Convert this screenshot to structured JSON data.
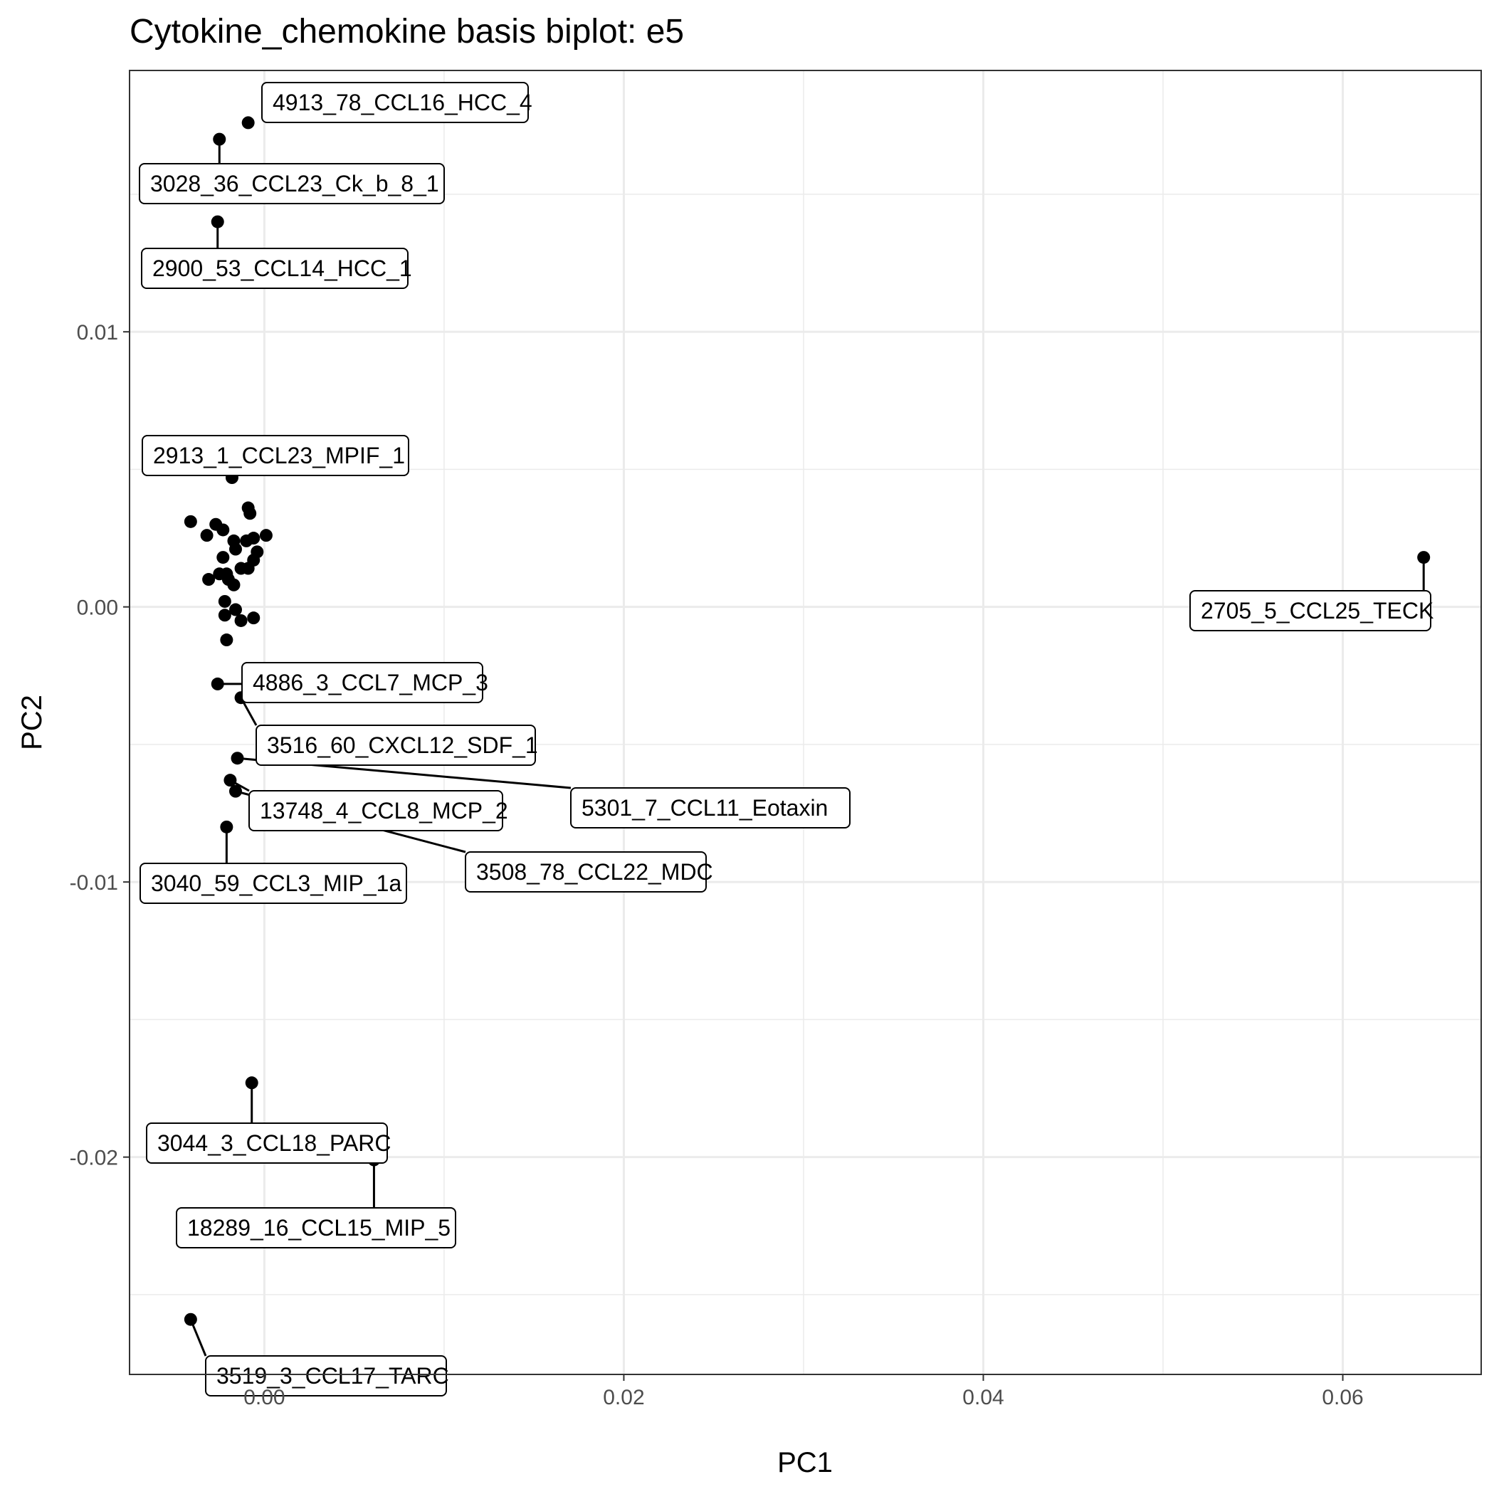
{
  "chart_data": {
    "type": "scatter",
    "title": "Cytokine_chemokine basis biplot: e5",
    "xlabel": "PC1",
    "ylabel": "PC2",
    "xlim": [
      -0.0075,
      0.0677
    ],
    "ylim": [
      -0.0279,
      0.0195
    ],
    "x_ticks": [
      0.0,
      0.02,
      0.04,
      0.06
    ],
    "x_tick_labels": [
      "0.00",
      "0.02",
      "0.04",
      "0.06"
    ],
    "y_ticks": [
      -0.02,
      -0.01,
      0.0,
      0.01
    ],
    "y_tick_labels": [
      "-0.02",
      "-0.01",
      "0.00",
      "0.01"
    ],
    "grid": true,
    "legend": "none",
    "colors": {
      "points": "#000000",
      "grid": "#ebebeb",
      "panel_border": "#333333",
      "label_border": "#000000"
    },
    "points": [
      {
        "x": -0.0009,
        "y": 0.0176
      },
      {
        "x": -0.0025,
        "y": 0.017
      },
      {
        "x": -0.0026,
        "y": 0.014
      },
      {
        "x": -0.0018,
        "y": 0.0047
      },
      {
        "x": -0.0041,
        "y": 0.0031
      },
      {
        "x": -0.0027,
        "y": 0.003
      },
      {
        "x": -0.0032,
        "y": 0.0026
      },
      {
        "x": -0.0023,
        "y": 0.0028
      },
      {
        "x": -0.0009,
        "y": 0.0036
      },
      {
        "x": -0.0008,
        "y": 0.0034
      },
      {
        "x": -0.0017,
        "y": 0.0024
      },
      {
        "x": -0.001,
        "y": 0.0024
      },
      {
        "x": -0.0006,
        "y": 0.0025
      },
      {
        "x": 0.0001,
        "y": 0.0026
      },
      {
        "x": -0.0016,
        "y": 0.0021
      },
      {
        "x": -0.0004,
        "y": 0.002
      },
      {
        "x": -0.0006,
        "y": 0.0017
      },
      {
        "x": -0.0023,
        "y": 0.0018
      },
      {
        "x": -0.0013,
        "y": 0.0014
      },
      {
        "x": -0.0009,
        "y": 0.0014
      },
      {
        "x": -0.0025,
        "y": 0.0012
      },
      {
        "x": -0.0021,
        "y": 0.0012
      },
      {
        "x": -0.0031,
        "y": 0.001
      },
      {
        "x": -0.002,
        "y": 0.001
      },
      {
        "x": -0.0017,
        "y": 0.0008
      },
      {
        "x": -0.0022,
        "y": 0.0002
      },
      {
        "x": -0.0016,
        "y": -0.0001
      },
      {
        "x": -0.0022,
        "y": -0.0003
      },
      {
        "x": -0.0013,
        "y": -0.0005
      },
      {
        "x": -0.0006,
        "y": -0.0004
      },
      {
        "x": -0.0021,
        "y": -0.0012
      },
      {
        "x": -0.0026,
        "y": -0.0028
      },
      {
        "x": -0.0013,
        "y": -0.0033
      },
      {
        "x": -0.0015,
        "y": -0.0055
      },
      {
        "x": -0.0019,
        "y": -0.0063
      },
      {
        "x": -0.0016,
        "y": -0.0067
      },
      {
        "x": -0.0021,
        "y": -0.008
      },
      {
        "x": -0.0007,
        "y": -0.0173
      },
      {
        "x": 0.0061,
        "y": -0.0201
      },
      {
        "x": -0.0041,
        "y": -0.0259
      },
      {
        "x": 0.0645,
        "y": 0.0018
      }
    ],
    "labels": [
      {
        "text": "4913_78_CCL16_HCC_4",
        "x": -0.0009,
        "y": 0.0176
      },
      {
        "text": "3028_36_CCL23_Ck_b_8_1",
        "x": -0.0025,
        "y": 0.017
      },
      {
        "text": "2900_53_CCL14_HCC_1",
        "x": -0.0026,
        "y": 0.014
      },
      {
        "text": "2913_1_CCL23_MPIF_1",
        "x": -0.0018,
        "y": 0.0047
      },
      {
        "text": "2705_5_CCL25_TECK",
        "x": 0.0645,
        "y": 0.0018
      },
      {
        "text": "4886_3_CCL7_MCP_3",
        "x": -0.0026,
        "y": -0.0028
      },
      {
        "text": "3516_60_CXCL12_SDF_1",
        "x": -0.0013,
        "y": -0.0033
      },
      {
        "text": "5301_7_CCL11_Eotaxin",
        "x": -0.0015,
        "y": -0.0055
      },
      {
        "text": "13748_4_CCL8_MCP_2",
        "x": -0.0019,
        "y": -0.0063
      },
      {
        "text": "3508_78_CCL22_MDC",
        "x": -0.0016,
        "y": -0.0067
      },
      {
        "text": "3040_59_CCL3_MIP_1a",
        "x": -0.0021,
        "y": -0.008
      },
      {
        "text": "3044_3_CCL18_PARC",
        "x": -0.0007,
        "y": -0.0173
      },
      {
        "text": "18289_16_CCL15_MIP_5",
        "x": 0.0061,
        "y": -0.0201
      },
      {
        "text": "3519_3_CCL17_TARC",
        "x": -0.0041,
        "y": -0.0259
      }
    ]
  }
}
